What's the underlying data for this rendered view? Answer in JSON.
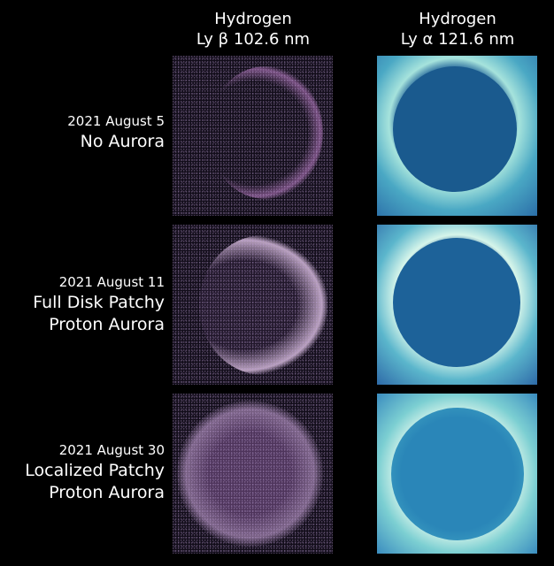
{
  "columns": [
    {
      "line1": "Hydrogen",
      "line2": "Ly β 102.6 nm"
    },
    {
      "line1": "Hydrogen",
      "line2": "Ly α 121.6 nm"
    }
  ],
  "rows": [
    {
      "date": "2021 August 5",
      "title_lines": [
        "No Aurora"
      ]
    },
    {
      "date": "2021 August 11",
      "title_lines": [
        "Full Disk Patchy",
        "Proton Aurora"
      ]
    },
    {
      "date": "2021 August 30",
      "title_lines": [
        "Localized Patchy",
        "Proton Aurora"
      ]
    }
  ],
  "colors": {
    "ly_beta_colormap": "#d9a8e6",
    "ly_alpha_colormap": "#2f7fb8",
    "background": "#000000"
  }
}
